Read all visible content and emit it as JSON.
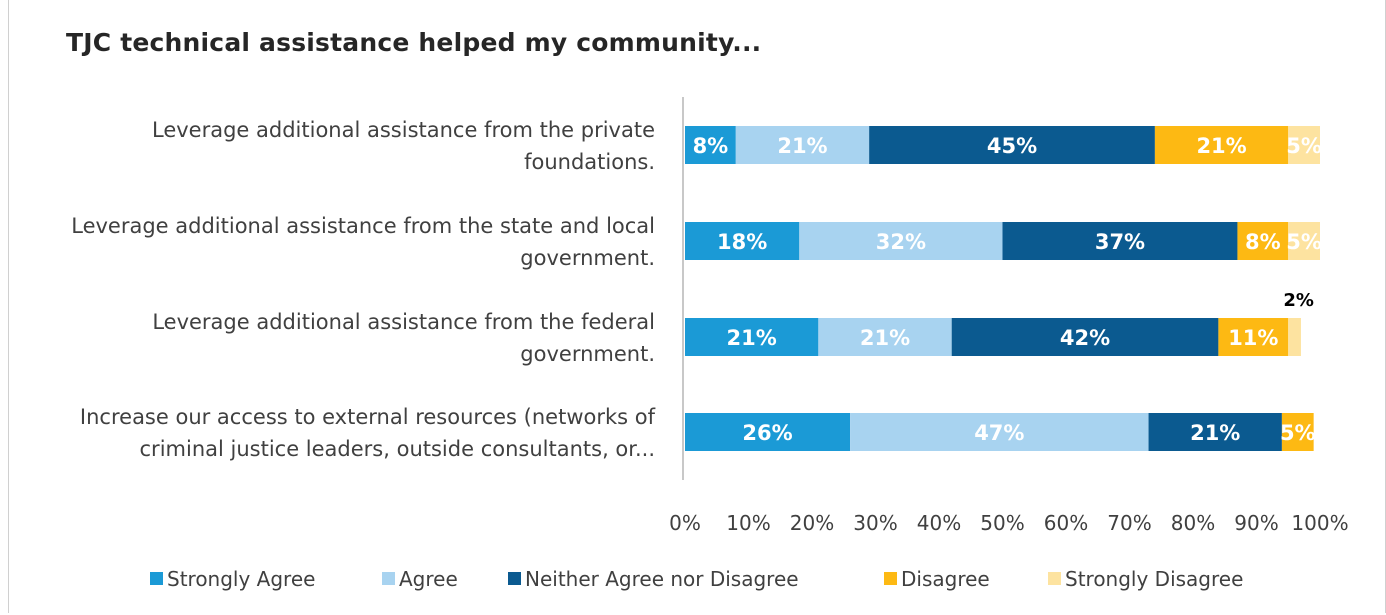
{
  "chart_data": {
    "type": "bar",
    "orientation": "horizontal",
    "stacked": true,
    "title": "TJC technical assistance helped my community...",
    "categories": [
      [
        "Leverage additional assistance from the private",
        "foundations."
      ],
      [
        "Leverage additional assistance from the state and local",
        "government."
      ],
      [
        "Leverage additional assistance from the federal",
        "government."
      ],
      [
        "Increase our access to external resources (networks of",
        "criminal justice leaders, outside consultants, or..."
      ]
    ],
    "series": [
      {
        "name": "Strongly Agree",
        "color": "#1b9ad6",
        "label_color": "#ffffff",
        "values": [
          8,
          18,
          21,
          26
        ],
        "labels": [
          "8%",
          "18%",
          "21%",
          "26%"
        ]
      },
      {
        "name": "Agree",
        "color": "#a8d3f0",
        "label_color": "#ffffff",
        "values": [
          21,
          32,
          21,
          47
        ],
        "labels": [
          "21%",
          "32%",
          "21%",
          "47%"
        ]
      },
      {
        "name": "Neither Agree nor Disagree",
        "color": "#0b5a90",
        "label_color": "#ffffff",
        "values": [
          45,
          37,
          42,
          21
        ],
        "labels": [
          "45%",
          "37%",
          "42%",
          "21%"
        ]
      },
      {
        "name": "Disagree",
        "color": "#fdb913",
        "label_color": "#ffffff",
        "values": [
          21,
          8,
          11,
          5
        ],
        "labels": [
          "21%",
          "8%",
          "11%",
          "5%"
        ]
      },
      {
        "name": "Strongly Disagree",
        "color": "#fde3a0",
        "label_color": "#ffffff",
        "values": [
          5,
          5,
          2,
          0
        ],
        "labels": [
          "5%",
          "5%",
          "2%",
          ""
        ]
      }
    ],
    "xlim": [
      0,
      100
    ],
    "xticks": [
      "0%",
      "10%",
      "20%",
      "30%",
      "40%",
      "50%",
      "60%",
      "70%",
      "80%",
      "90%",
      "100%"
    ],
    "grid": false,
    "legend_position": "bottom"
  }
}
